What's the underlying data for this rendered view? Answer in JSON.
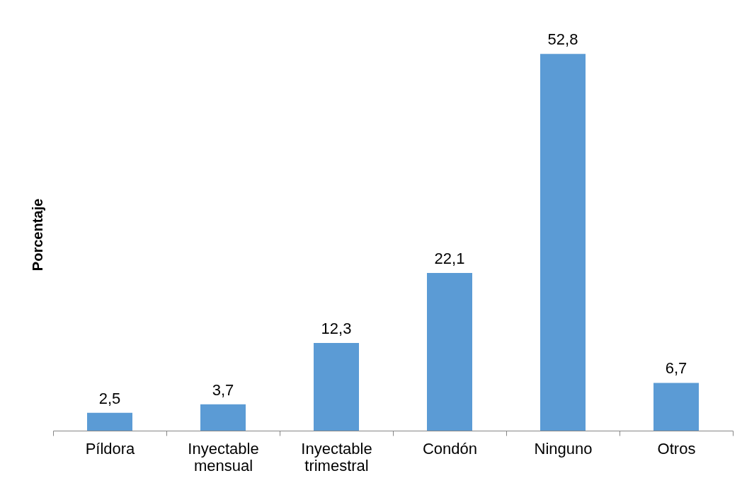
{
  "chart_data": {
    "type": "bar",
    "ylabel": "Porcentaje",
    "categories": [
      "Píldora",
      "Inyectable mensual",
      "Inyectable trimestral",
      "Condón",
      "Ninguno",
      "Otros"
    ],
    "values": [
      2.5,
      3.7,
      12.3,
      22.1,
      52.8,
      6.7
    ],
    "value_labels": [
      "2,5",
      "3,7",
      "12,3",
      "22,1",
      "52,8",
      "6,7"
    ],
    "color": "#5b9bd5",
    "grid": false,
    "tick_labels": "x"
  }
}
